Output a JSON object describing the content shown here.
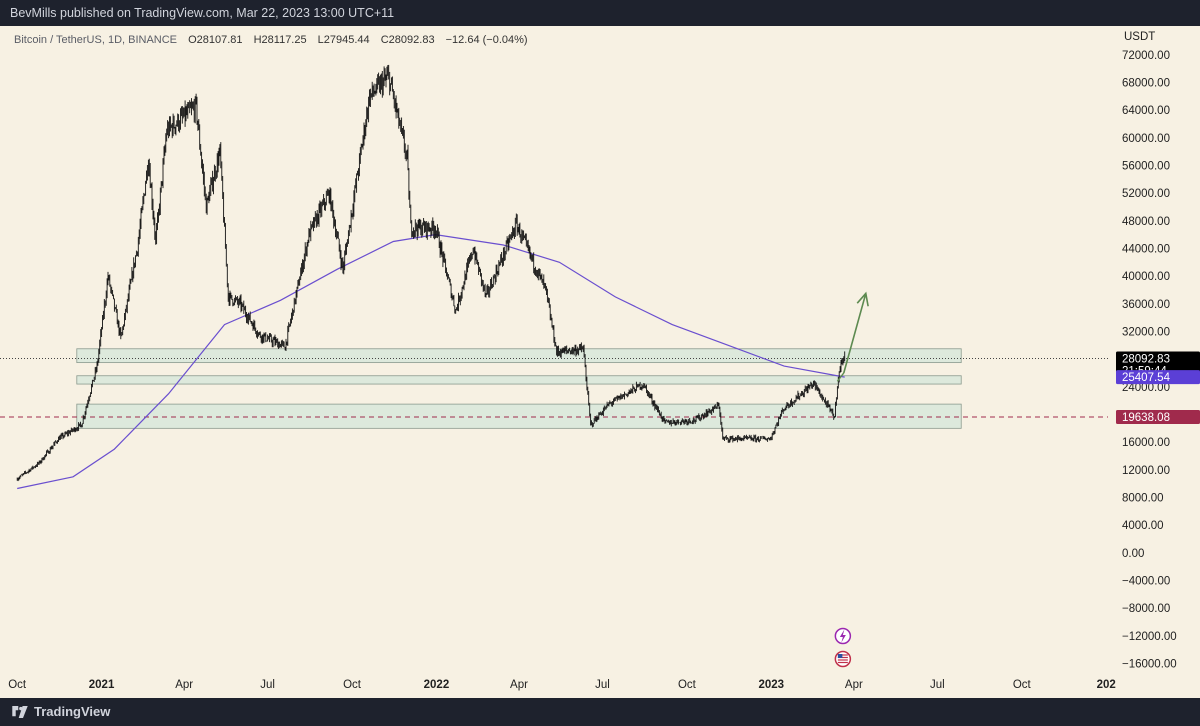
{
  "header": {
    "publisher_text": "BevMills published on TradingView.com, Mar 22, 2023 13:00 UTC+11"
  },
  "legend": {
    "symbol": "Bitcoin / TetherUS, 1D, BINANCE",
    "open": "O28107.81",
    "high": "H28117.25",
    "low": "L27945.44",
    "close": "C28092.83",
    "change": "−12.64 (−0.04%)"
  },
  "footer": {
    "brand": "TradingView"
  },
  "colors": {
    "background": "#f7f1e3",
    "candles": "#111111",
    "ma": "#6a4fcf",
    "zone": "#d4e6da",
    "arrow": "#5d8a50",
    "price_tag": "#000000",
    "ma_tag": "#5b3fd6",
    "support_tag": "#a02a4c"
  },
  "icons": [
    "lightning-icon",
    "us-flag-icon"
  ],
  "chart_data": {
    "type": "candlestick",
    "unit_label": "USDT",
    "y_ticks": [
      "72000.00",
      "68000.00",
      "64000.00",
      "60000.00",
      "56000.00",
      "52000.00",
      "48000.00",
      "44000.00",
      "40000.00",
      "36000.00",
      "32000.00",
      "28000.00",
      "24000.00",
      "20000.00",
      "16000.00",
      "12000.00",
      "8000.00",
      "4000.00",
      "0.00",
      "−4000.00",
      "−8000.00",
      "−12000.00",
      "−16000.00"
    ],
    "x_ticks": [
      "Oct",
      "2021",
      "Apr",
      "Jul",
      "Oct",
      "2022",
      "Apr",
      "Jul",
      "Oct",
      "2023",
      "Apr",
      "Jul",
      "Oct",
      "202"
    ],
    "ylim": [
      -17800,
      75000
    ],
    "price_anchors": [
      [
        "2020-10-01",
        10700
      ],
      [
        "2020-10-25",
        13000
      ],
      [
        "2020-11-15",
        16500
      ],
      [
        "2020-12-10",
        18500
      ],
      [
        "2020-12-27",
        27000
      ],
      [
        "2021-01-08",
        40000
      ],
      [
        "2021-01-22",
        31000
      ],
      [
        "2021-02-10",
        45000
      ],
      [
        "2021-02-21",
        57000
      ],
      [
        "2021-03-01",
        45000
      ],
      [
        "2021-03-13",
        61000
      ],
      [
        "2021-04-14",
        64500
      ],
      [
        "2021-04-25",
        50000
      ],
      [
        "2021-05-10",
        58000
      ],
      [
        "2021-05-19",
        37000
      ],
      [
        "2021-06-01",
        36000
      ],
      [
        "2021-06-22",
        31500
      ],
      [
        "2021-07-20",
        29800
      ],
      [
        "2021-08-15",
        46000
      ],
      [
        "2021-09-06",
        52000
      ],
      [
        "2021-09-21",
        41000
      ],
      [
        "2021-10-20",
        66000
      ],
      [
        "2021-11-10",
        68800
      ],
      [
        "2021-11-30",
        57000
      ],
      [
        "2021-12-04",
        47000
      ],
      [
        "2021-12-31",
        47000
      ],
      [
        "2022-01-22",
        35000
      ],
      [
        "2022-02-10",
        44000
      ],
      [
        "2022-02-24",
        37000
      ],
      [
        "2022-03-29",
        47500
      ],
      [
        "2022-04-30",
        38000
      ],
      [
        "2022-05-12",
        29000
      ],
      [
        "2022-06-10",
        29500
      ],
      [
        "2022-06-18",
        18500
      ],
      [
        "2022-07-08",
        21500
      ],
      [
        "2022-08-14",
        24400
      ],
      [
        "2022-09-07",
        18800
      ],
      [
        "2022-10-10",
        19200
      ],
      [
        "2022-11-05",
        21300
      ],
      [
        "2022-11-09",
        16500
      ],
      [
        "2022-12-31",
        16500
      ],
      [
        "2023-01-14",
        20800
      ],
      [
        "2023-02-16",
        24500
      ],
      [
        "2023-03-09",
        20000
      ],
      [
        "2023-03-11",
        19600
      ],
      [
        "2023-03-14",
        24500
      ],
      [
        "2023-03-19",
        28000
      ],
      [
        "2023-03-22",
        28092.83
      ]
    ],
    "ma_anchors": [
      [
        "2020-10-01",
        9300
      ],
      [
        "2020-12-01",
        11000
      ],
      [
        "2021-01-15",
        15000
      ],
      [
        "2021-03-15",
        23000
      ],
      [
        "2021-05-15",
        33000
      ],
      [
        "2021-07-15",
        36500
      ],
      [
        "2021-09-15",
        41000
      ],
      [
        "2021-11-15",
        45000
      ],
      [
        "2021-12-31",
        46000
      ],
      [
        "2022-03-15",
        44500
      ],
      [
        "2022-05-15",
        42000
      ],
      [
        "2022-07-15",
        37000
      ],
      [
        "2022-09-15",
        33000
      ],
      [
        "2022-11-15",
        30000
      ],
      [
        "2023-01-15",
        27000
      ],
      [
        "2023-03-22",
        25407.54
      ]
    ],
    "zones": [
      {
        "from": "2020-12-05",
        "to": "2023-07-27",
        "low": 27500,
        "high": 29500
      },
      {
        "from": "2020-12-05",
        "to": "2023-07-27",
        "low": 24400,
        "high": 25600
      },
      {
        "from": "2020-12-05",
        "to": "2023-07-27",
        "low": 18000,
        "high": 21500
      }
    ],
    "projection_arrow": [
      [
        "2023-03-21",
        26000
      ],
      [
        "2023-04-14",
        37500
      ]
    ],
    "reference_lines": [
      {
        "value": 28092.83,
        "style": "dotted"
      },
      {
        "value": 19638.08,
        "style": "dashed"
      }
    ],
    "price_tags": [
      {
        "label": "28092.83",
        "sub": "21:59:44",
        "value": 28092.83
      },
      {
        "label": "25407.54",
        "value": 25407.54
      },
      {
        "label": "19638.08",
        "value": 19638.08
      }
    ]
  }
}
